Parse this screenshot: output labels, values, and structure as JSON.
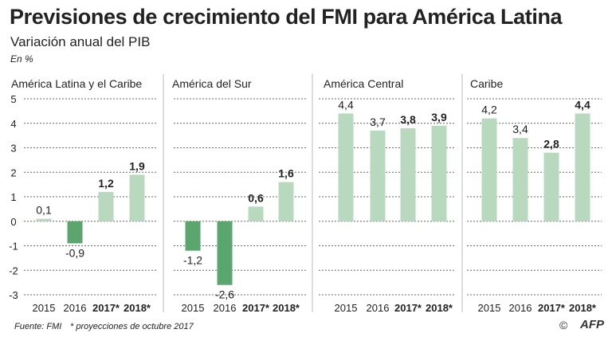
{
  "title": "Previsiones de crecimiento del FMI para América Latina",
  "subtitle": "Variación anual del PIB",
  "unit": "En %",
  "footer": {
    "source": "Fuente: FMI",
    "note": "* proyecciones de octubre 2017",
    "credit": "AFP",
    "copyright_symbol": "©"
  },
  "colors": {
    "positive": "#b8d9bd",
    "negative": "#5aa66e",
    "grid": "#666666",
    "divider": "#bbbbbb"
  },
  "chart_data": {
    "type": "bar",
    "ylim": [
      -3,
      5
    ],
    "yticks": [
      "5",
      "4",
      "3",
      "2",
      "1",
      "0",
      "-1",
      "-2",
      "-3"
    ],
    "ytick_values": [
      5,
      4,
      3,
      2,
      1,
      0,
      -1,
      -2,
      -3
    ],
    "categories": [
      "2015",
      "2016",
      "2017*",
      "2018*"
    ],
    "bold_categories": [
      false,
      false,
      true,
      true
    ],
    "panels": [
      {
        "name": "América Latina y el Caribe",
        "values": [
          0.1,
          -0.9,
          1.2,
          1.9
        ],
        "labels": [
          "0,1",
          "-0,9",
          "1,2",
          "1,9"
        ]
      },
      {
        "name": "América del Sur",
        "values": [
          -1.2,
          -2.6,
          0.6,
          1.6
        ],
        "labels": [
          "-1,2",
          "-2,6",
          "0,6",
          "1,6"
        ]
      },
      {
        "name": "América Central",
        "values": [
          4.4,
          3.7,
          3.8,
          3.9
        ],
        "labels": [
          "4,4",
          "3,7",
          "3,8",
          "3,9"
        ]
      },
      {
        "name": "Caribe",
        "values": [
          4.2,
          3.4,
          2.8,
          4.4
        ],
        "labels": [
          "4,2",
          "3,4",
          "2,8",
          "4,4"
        ]
      }
    ]
  }
}
